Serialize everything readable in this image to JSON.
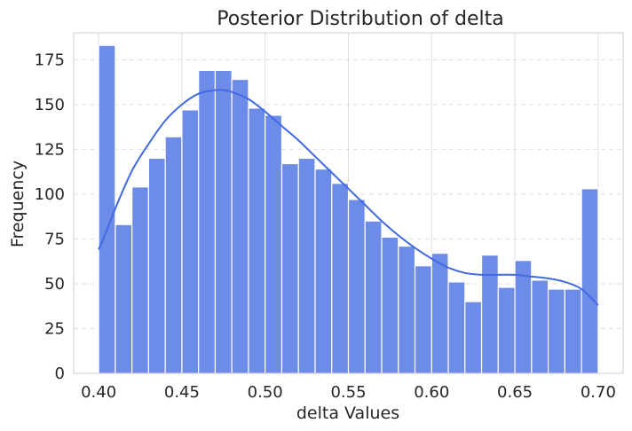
{
  "chart_data": {
    "type": "bar",
    "title": "Posterior Distribution of delta",
    "xlabel": "delta Values",
    "ylabel": "Frequency",
    "xlim": [
      0.385,
      0.715
    ],
    "ylim": [
      0,
      190
    ],
    "xticks": [
      0.4,
      0.45,
      0.5,
      0.55,
      0.6,
      0.65,
      0.7
    ],
    "xtick_labels": [
      "0.40",
      "0.45",
      "0.50",
      "0.55",
      "0.60",
      "0.65",
      "0.70"
    ],
    "yticks": [
      0,
      25,
      50,
      75,
      100,
      125,
      150,
      175
    ],
    "ytick_labels": [
      "0",
      "25",
      "50",
      "75",
      "100",
      "125",
      "150",
      "175"
    ],
    "grid": true,
    "bins": {
      "start": 0.4,
      "width": 0.01,
      "counts": [
        183,
        83,
        104,
        120,
        132,
        147,
        169,
        169,
        164,
        148,
        144,
        117,
        120,
        114,
        106,
        97,
        85,
        76,
        71,
        60,
        67,
        51,
        40,
        66,
        48,
        63,
        52,
        47,
        47,
        103
      ]
    },
    "kde": {
      "x": [
        0.4,
        0.405,
        0.41,
        0.42,
        0.43,
        0.44,
        0.45,
        0.46,
        0.47,
        0.475,
        0.48,
        0.49,
        0.5,
        0.51,
        0.52,
        0.53,
        0.54,
        0.55,
        0.56,
        0.57,
        0.58,
        0.59,
        0.6,
        0.61,
        0.62,
        0.63,
        0.64,
        0.65,
        0.66,
        0.67,
        0.68,
        0.69,
        0.7
      ],
      "y": [
        69,
        80,
        92,
        113,
        128,
        141,
        150,
        156,
        158,
        158,
        157,
        153,
        146,
        138,
        130,
        121,
        112,
        103,
        94,
        85,
        77,
        70,
        64,
        59,
        56,
        55,
        55,
        55,
        54,
        53,
        51,
        47,
        38
      ]
    },
    "colors": {
      "bar_fill": "#6d8ce8",
      "bar_edge": "#ffffff",
      "kde_line": "#4169e1",
      "grid": "#dedede",
      "axis_frame": "#cccccc",
      "text": "#262626"
    }
  }
}
